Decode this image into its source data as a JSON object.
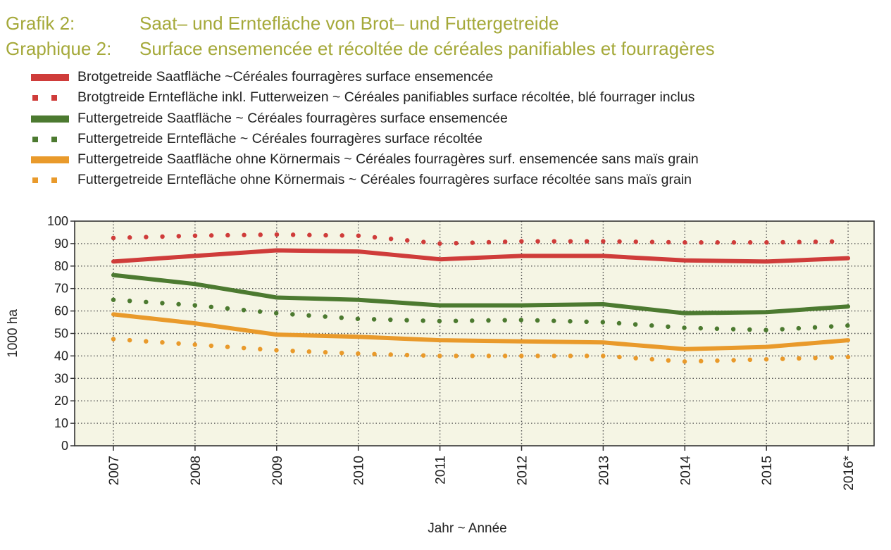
{
  "header": {
    "label_de": "Grafik 2:",
    "title_de": "Saat– und Erntefläche von Brot– und Futtergetreide",
    "label_fr": "Graphique 2:",
    "title_fr": "Surface ensemencée et récoltée de céréales panifiables et fourragères"
  },
  "colors": {
    "red": "#cf3c3a",
    "green": "#4c7a30",
    "orange": "#e99a2b",
    "plot_bg": "#f5f5e4",
    "axis": "#333333"
  },
  "chart_data": {
    "type": "line",
    "x": [
      "2007",
      "2008",
      "2009",
      "2010",
      "2011",
      "2012",
      "2013",
      "2014",
      "2015",
      "2016*"
    ],
    "xlabel": "Jahr ~ Année",
    "ylabel": "1000 ha",
    "ylim": [
      0,
      100
    ],
    "yticks": [
      0,
      10,
      20,
      30,
      40,
      50,
      60,
      70,
      80,
      90,
      100
    ],
    "grid": true,
    "legend_position": "top",
    "series": [
      {
        "name": "Brotgetreide Saatfläche ~Céréales fourragères surface ensemencée",
        "color": "#cf3c3a",
        "style": "solid",
        "values": [
          82,
          84.5,
          87,
          86.5,
          83,
          84.5,
          84.5,
          82.5,
          82,
          83.5
        ]
      },
      {
        "name": "Brotgtreide Erntefläche inkl. Futterweizen ~ Céréales panifiables surface récoltée, blé fourrager inclus",
        "color": "#cf3c3a",
        "style": "dotted",
        "values": [
          92.5,
          93.5,
          94,
          93.5,
          90,
          91,
          91,
          90.5,
          90.5,
          91
        ]
      },
      {
        "name": "Futtergetreide Saatfläche ~ Céréales fourragères surface ensemencée",
        "color": "#4c7a30",
        "style": "solid",
        "values": [
          76,
          72,
          66,
          65,
          62.5,
          62.5,
          63,
          59,
          59.5,
          62
        ]
      },
      {
        "name": "Futtergetreide Erntefläche ~ Céréales fourragères surface récoltée",
        "color": "#4c7a30",
        "style": "dotted",
        "values": [
          65,
          62.5,
          59,
          56.5,
          55.5,
          56,
          55,
          52.5,
          51.5,
          53.5
        ]
      },
      {
        "name": "Futtergetreide Saatfläche ohne Körnermais ~ Céréales fourragères surf. ensemencée sans maïs grain",
        "color": "#e99a2b",
        "style": "solid",
        "values": [
          58.5,
          54.5,
          49.5,
          48.5,
          47,
          46.5,
          46,
          43,
          44,
          47
        ]
      },
      {
        "name": "Futtergetreide Erntefläche ohne Körnermais ~ Céréales fourragères surface récoltée sans maïs grain",
        "color": "#e99a2b",
        "style": "dotted",
        "values": [
          47.5,
          45,
          42.5,
          41,
          40,
          40,
          40,
          37.5,
          38.5,
          39.5
        ]
      }
    ]
  }
}
